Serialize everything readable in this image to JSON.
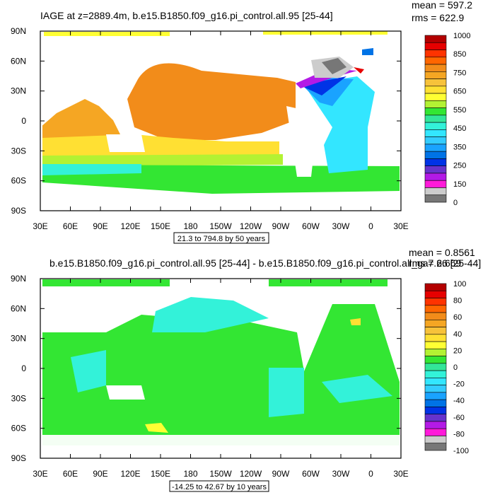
{
  "chart_data": [
    {
      "type": "heatmap",
      "title": "IAGE at z=2889.4m, b.e15.B1850.f09_g16.pi_control.all.95 [25-44]",
      "stats": [
        "mean = 597.2",
        "rms = 622.9"
      ],
      "x_ticks": [
        "30E",
        "60E",
        "90E",
        "120E",
        "150E",
        "180",
        "150W",
        "120W",
        "90W",
        "60W",
        "30W",
        "0",
        "30E"
      ],
      "y_ticks": [
        "90N",
        "60N",
        "30N",
        "0",
        "30S",
        "60S",
        "90S"
      ],
      "xlim": [
        30,
        390
      ],
      "ylim": [
        -90,
        90
      ],
      "contour_info": "21.3 to 794.8 by 50 years",
      "colorbar": {
        "labels": [
          "1000",
          "850",
          "750",
          "650",
          "550",
          "450",
          "350",
          "250",
          "150",
          "0"
        ],
        "colors": [
          "#b30000",
          "#e60000",
          "#ff3300",
          "#ff6600",
          "#f28c1a",
          "#f5a623",
          "#f7c23a",
          "#ffe033",
          "#ffff33",
          "#b3f233",
          "#33e633",
          "#33e699",
          "#33f2d9",
          "#33e6ff",
          "#33ccff",
          "#1aa3ff",
          "#0073e6",
          "#0033e6",
          "#6633cc",
          "#b31ae6",
          "#ff1ad9",
          "#cccccc",
          "#777777"
        ]
      }
    },
    {
      "type": "heatmap",
      "title": "b.e15.B1850.f09_g16.pi_control.all.95 [25-44] - b.e15.B1850.f09_g16.pi_control.all_ga7.66 [25-44]",
      "stats": [
        "mean = 0.8561",
        "rms = 2.669"
      ],
      "x_ticks": [
        "30E",
        "60E",
        "90E",
        "120E",
        "150E",
        "180",
        "150W",
        "120W",
        "90W",
        "60W",
        "30W",
        "0",
        "30E"
      ],
      "y_ticks": [
        "90N",
        "60N",
        "30N",
        "0",
        "30S",
        "60S",
        "90S"
      ],
      "xlim": [
        30,
        390
      ],
      "ylim": [
        -90,
        90
      ],
      "contour_info": "-14.25 to 42.67 by 10 years",
      "colorbar": {
        "labels": [
          "100",
          "80",
          "60",
          "40",
          "20",
          "0",
          "-20",
          "-40",
          "-60",
          "-80",
          "-100"
        ],
        "colors": [
          "#b30000",
          "#e60000",
          "#ff3300",
          "#ff6600",
          "#f28c1a",
          "#f5a623",
          "#f7c23a",
          "#ffe033",
          "#ffff33",
          "#b3f233",
          "#33e633",
          "#33e699",
          "#33f2d9",
          "#33e6ff",
          "#33ccff",
          "#1aa3ff",
          "#0073e6",
          "#0033e6",
          "#6633cc",
          "#b31ae6",
          "#ff1ad9",
          "#cccccc",
          "#777777"
        ]
      }
    }
  ]
}
